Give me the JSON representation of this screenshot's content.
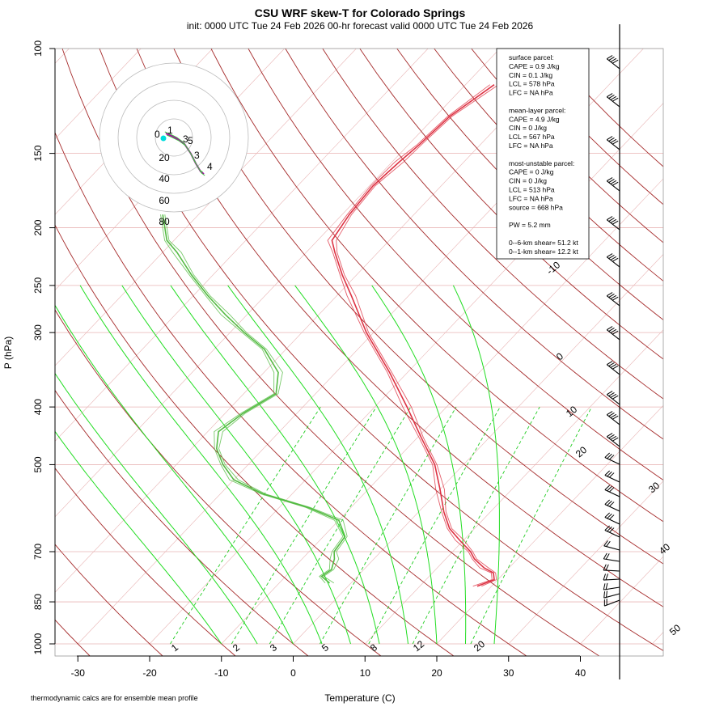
{
  "title": "CSU WRF skew-T for Colorado Springs",
  "subtitle": "init: 0000 UTC Tue 24 Feb 2026     00-hr forecast valid 0000 UTC Tue 24 Feb 2026",
  "footnote": "thermodynamic calcs are for ensemble mean profile",
  "info_lines": [
    "surface parcel:",
    "CAPE = 0.9 J/kg",
    "CIN = 0.1 J/kg",
    "LCL = 578 hPa",
    "LFC = NA hPa",
    "",
    "mean-layer parcel:",
    "CAPE = 4.9 J/kg",
    "CIN = 0 J/kg",
    "LCL = 567 hPa",
    "LFC = NA hPa",
    "",
    "most-unstable parcel:",
    "CAPE = 0 J/kg",
    "CIN = 0 J/kg",
    "LCL = 513 hPa",
    "LFC = NA hPa",
    "source = 668 hPa",
    "",
    "PW =  5.2 mm",
    "",
    "0--6-km shear= 51.2 kt",
    "0--1-km shear= 12.2 kt"
  ],
  "colors": {
    "isobar": "#e8b4b4",
    "isotherm": "#e8b4b4",
    "dry_adiabat": "#a52a2a",
    "moist_adiabat": "#22dd22",
    "mixing_ratio": "#22cc22",
    "temperature": "#dd3344",
    "dewpoint": "#55bb44",
    "barb": "#000000",
    "hodo_ring": "#bbbbbb",
    "hodo_trace": "#aa00aa",
    "hodo_start": "#00dddd"
  },
  "chart_data": {
    "type": "line",
    "title": "CSU WRF skew-T for Colorado Springs",
    "xlabel": "Temperature (C)",
    "ylabel": "P (hPa)",
    "y_scale": "log-pressure (inverted)",
    "xlim": [
      -33,
      52
    ],
    "ylim": [
      1000,
      100
    ],
    "x_ticks": [
      -30,
      -20,
      -10,
      0,
      10,
      20,
      30,
      40
    ],
    "y_tick_labels": [
      "100",
      "150",
      "200",
      "250",
      "300",
      "400",
      "500",
      "700",
      "850",
      "1000"
    ],
    "y_ticks": [
      100,
      150,
      200,
      250,
      300,
      400,
      500,
      700,
      850,
      1000
    ],
    "isotherm_labels": [
      "-10",
      "0",
      "10",
      "20",
      "30",
      "40",
      "50"
    ],
    "isotherm_label_values": [
      -10,
      0,
      10,
      20,
      30,
      40,
      50
    ],
    "mixing_ratio_labels": [
      "1",
      "2",
      "3",
      "5",
      "8",
      "12",
      "20"
    ],
    "mixing_ratio_values": [
      1,
      2,
      3,
      5,
      8,
      12,
      20
    ],
    "grid": true,
    "series": [
      {
        "kind": "temperature",
        "p": [
          800,
          780,
          760,
          745,
          720,
          700,
          670,
          640,
          600,
          550,
          500,
          450,
          400,
          350,
          300,
          260,
          240,
          220,
          210,
          190,
          170,
          155,
          145,
          130,
          115
        ],
        "t": [
          18.0,
          19.5,
          18.5,
          16.5,
          14.0,
          12.5,
          9.5,
          6.5,
          3.5,
          0.0,
          -4.0,
          -9.5,
          -15.5,
          -22.5,
          -31.0,
          -38.0,
          -42.0,
          -46.0,
          -48.0,
          -49.0,
          -49.5,
          -49.0,
          -48.5,
          -48.0,
          -46.0
        ]
      },
      {
        "kind": "dewpoint",
        "p": [
          790,
          770,
          750,
          720,
          700,
          660,
          620,
          590,
          560,
          530,
          500,
          470,
          440,
          410,
          380,
          350,
          320,
          300,
          280,
          260,
          240,
          220,
          210,
          190
        ],
        "t": [
          -3.0,
          -5.0,
          -4.5,
          -5.5,
          -6.5,
          -7.0,
          -10.0,
          -16.0,
          -24.0,
          -30.0,
          -33.5,
          -36.5,
          -38.5,
          -37.5,
          -35.5,
          -38.0,
          -43.0,
          -48.0,
          -53.0,
          -58.0,
          -63.0,
          -68.0,
          -71.0,
          -75.0
        ]
      }
    ],
    "hodograph_rings": [
      "20",
      "40",
      "60",
      "80"
    ],
    "hodograph_labels": [
      "0",
      "1",
      "3",
      "5",
      "3",
      "4"
    ]
  }
}
